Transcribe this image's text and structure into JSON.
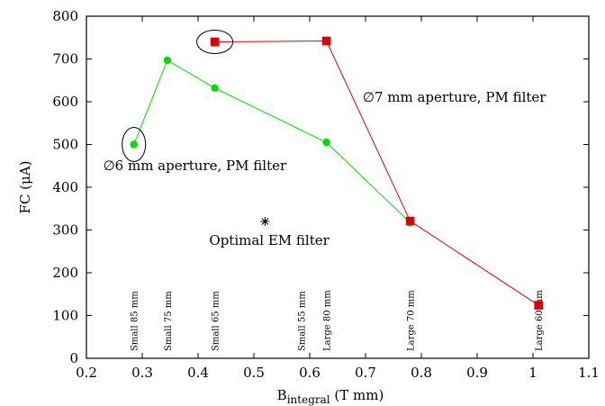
{
  "chart_data": {
    "type": "line",
    "title": "",
    "xlabel": "B",
    "xlabel_sub": "integral",
    "xlabel_unit": " (T mm)",
    "ylabel": "FC (μA)",
    "xlim": [
      0.2,
      1.1
    ],
    "ylim": [
      0,
      800
    ],
    "xticks": [
      "0.2",
      "0.3",
      "0.4",
      "0.5",
      "0.6",
      "0.7",
      "0.8",
      "0.9",
      "1",
      "1.1"
    ],
    "yticks": [
      "0",
      "100",
      "200",
      "300",
      "400",
      "500",
      "600",
      "700",
      "800"
    ],
    "grid": false,
    "series": [
      {
        "color": "#00dd00",
        "marker": "circle",
        "x": [
          0.285,
          0.345,
          0.43,
          0.63,
          0.78
        ],
        "y": [
          500,
          697,
          632,
          505,
          317
        ]
      },
      {
        "color": "#dd0000",
        "marker": "square",
        "x": [
          0.43,
          0.63,
          0.78,
          1.01
        ],
        "y": [
          740,
          742,
          321,
          124
        ]
      }
    ],
    "star_point": {
      "x": 0.52,
      "y": 320,
      "marker": "star"
    },
    "annotations": [
      {
        "text": "∅6 mm aperture, PM filter",
        "x": 0.23,
        "y": 440
      },
      {
        "text": "∅7 mm aperture, PM filter",
        "x": 0.695,
        "y": 600
      },
      {
        "text": "Optimal EM filter",
        "x": 0.42,
        "y": 265
      }
    ],
    "circled_points": [
      {
        "x": 0.285,
        "y": 500
      },
      {
        "x": 0.43,
        "y": 740
      }
    ],
    "magnet_labels": [
      {
        "text": "Small 85 mm",
        "x": 0.285
      },
      {
        "text": "Small 75 mm",
        "x": 0.345
      },
      {
        "text": "Small 65 mm",
        "x": 0.43
      },
      {
        "text": "Small 55 mm",
        "x": 0.585
      },
      {
        "text": "Large 80 mm",
        "x": 0.63
      },
      {
        "text": "Large 70 mm",
        "x": 0.78
      },
      {
        "text": "Large 60 mm",
        "x": 1.01
      }
    ]
  }
}
